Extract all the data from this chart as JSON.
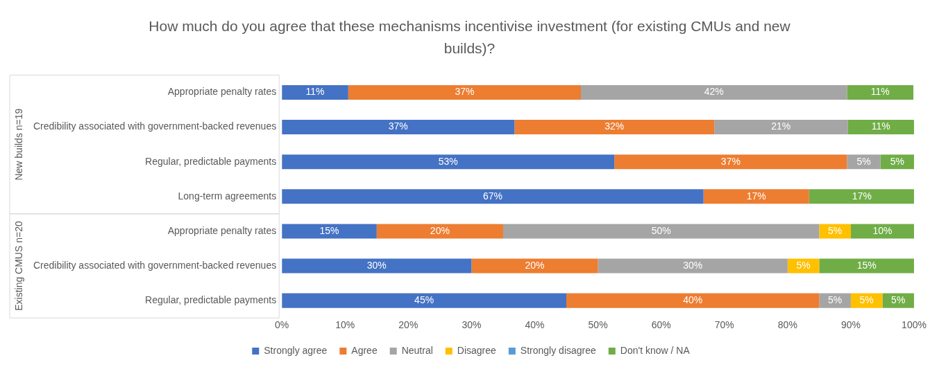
{
  "chart_data": {
    "type": "bar",
    "orientation": "horizontal",
    "stacked": true,
    "title": "How much do you agree that these mechanisms incentivise investment (for existing CMUs and new builds)?",
    "categories": [
      "Appropriate penalty rates",
      "Credibility associated with government-backed revenues",
      "Regular, predictable payments",
      "Long-term agreements",
      "Appropriate penalty rates",
      "Credibility associated with government-backed revenues",
      "Regular, predictable payments"
    ],
    "series": [
      {
        "name": "Strongly agree",
        "color": "#4472c4",
        "values": [
          10.5,
          36.8,
          52.6,
          66.7,
          15,
          30,
          45
        ],
        "value_labels": [
          "11%",
          "37%",
          "53%",
          "67%",
          "15%",
          "30%",
          "45%"
        ]
      },
      {
        "name": "Agree",
        "color": "#ed7d31",
        "values": [
          36.8,
          31.6,
          36.8,
          16.7,
          20,
          20,
          40
        ],
        "value_labels": [
          "37%",
          "32%",
          "37%",
          "17%",
          "20%",
          "20%",
          "40%"
        ]
      },
      {
        "name": "Neutral",
        "color": "#a5a5a5",
        "values": [
          42.1,
          21.1,
          5.3,
          0,
          50,
          30,
          5
        ],
        "value_labels": [
          "42%",
          "21%",
          "5%",
          null,
          "50%",
          "30%",
          "5%"
        ]
      },
      {
        "name": "Disagree",
        "color": "#ffc000",
        "values": [
          0,
          0,
          0,
          0,
          5,
          5,
          5
        ],
        "value_labels": [
          null,
          null,
          null,
          null,
          "5%",
          "5%",
          "5%"
        ]
      },
      {
        "name": "Strongly disagree",
        "color": "#5b9bd5",
        "values": [
          0,
          0,
          0,
          0,
          0,
          0,
          0
        ],
        "value_labels": [
          null,
          null,
          null,
          null,
          null,
          null,
          null
        ]
      },
      {
        "name": "Don't know / NA",
        "color": "#70ad47",
        "values": [
          10.5,
          10.5,
          5.3,
          16.7,
          10,
          15,
          5
        ],
        "value_labels": [
          "11%",
          "11%",
          "5%",
          "17%",
          "10%",
          "15%",
          "5%"
        ]
      }
    ],
    "annotations": [
      "New builds n=19",
      "Existing CMUS n=20"
    ],
    "xlim": [
      0,
      100
    ],
    "xticks": [
      {
        "value": 0,
        "label": "0%"
      },
      {
        "value": 10,
        "label": "10%"
      },
      {
        "value": 20,
        "label": "20%"
      },
      {
        "value": 30,
        "label": "30%"
      },
      {
        "value": 40,
        "label": "40%"
      },
      {
        "value": 50,
        "label": "50%"
      },
      {
        "value": 60,
        "label": "60%"
      },
      {
        "value": 70,
        "label": "70%"
      },
      {
        "value": 80,
        "label": "80%"
      },
      {
        "value": 90,
        "label": "90%"
      },
      {
        "value": 100,
        "label": "100%"
      }
    ],
    "grid": false,
    "legend": "bottom"
  }
}
